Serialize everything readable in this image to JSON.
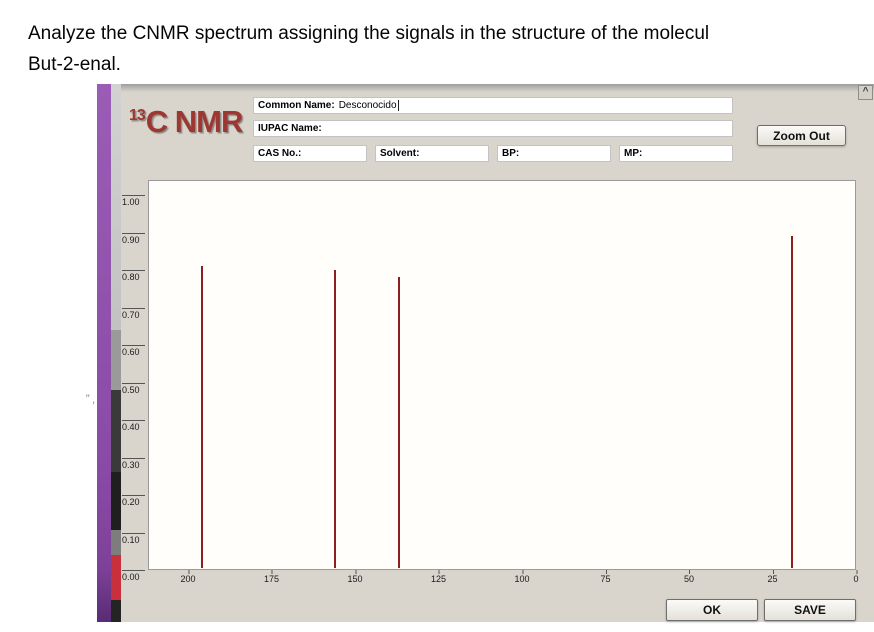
{
  "task": {
    "line1": "Analyze the CNMR spectrum assigning the signals in the structure of the molecul",
    "line2": "But-2-enal."
  },
  "app": {
    "logo_sup": "13",
    "logo_main": "C NMR",
    "scroll_up_glyph": "^",
    "fields": {
      "common_name": {
        "label": "Common Name:",
        "value": "Desconocido"
      },
      "iupac": {
        "label": "IUPAC Name:",
        "value": ""
      },
      "cas": {
        "label": "CAS No.:",
        "value": ""
      },
      "solvent": {
        "label": "Solvent:",
        "value": ""
      },
      "bp": {
        "label": "BP:",
        "value": ""
      },
      "mp": {
        "label": "MP:",
        "value": ""
      }
    },
    "buttons": {
      "zoom_out": "Zoom Out",
      "ok": "OK",
      "save": "SAVE"
    }
  },
  "chart_data": {
    "type": "line",
    "title": "",
    "xlabel": "",
    "ylabel": "",
    "xlim": [
      212,
      0
    ],
    "ylim": [
      0,
      1.04
    ],
    "x_ticks": [
      200,
      175,
      150,
      125,
      100,
      75,
      50,
      25,
      0
    ],
    "y_ticks": [
      "1.00",
      "0.90",
      "0.80",
      "0.70",
      "0.60",
      "0.50",
      "0.40",
      "0.30",
      "0.20",
      "0.10",
      "0.00"
    ],
    "grid": false,
    "legend": false,
    "peak_color": "#8f1f1f",
    "peaks": [
      {
        "ppm": 196,
        "intensity": 0.81
      },
      {
        "ppm": 156,
        "intensity": 0.8
      },
      {
        "ppm": 137,
        "intensity": 0.78
      },
      {
        "ppm": 19,
        "intensity": 0.89
      }
    ]
  }
}
